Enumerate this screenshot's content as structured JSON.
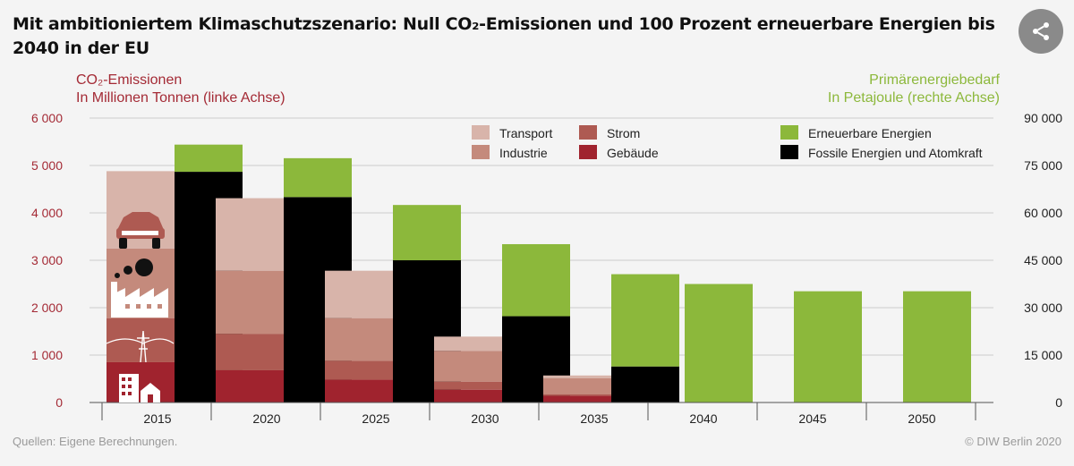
{
  "title": "Mit ambitioniertem Klimaschutzszenario: Null CO₂-Emissionen und 100 Prozent erneuerbare Energien bis 2040 in der EU",
  "share_icon": "share-icon",
  "left_axis_title": "CO₂-Emissionen",
  "left_axis_subtitle": "In Millionen Tonnen (linke Achse)",
  "right_axis_title": "Primärenergiebedarf",
  "right_axis_subtitle": "In Petajoule (rechte Achse)",
  "source": "Quellen: Eigene Berechnungen.",
  "copyright": "© DIW Berlin 2020",
  "colors": {
    "transport": "#d8b4aa",
    "industrie": "#c48a7c",
    "strom": "#ae5a52",
    "gebaeude": "#a0232e",
    "erneuerbar": "#8cb83b",
    "fossil": "#000000",
    "left_axis": "#a42a35",
    "right_axis": "#8cb83b",
    "grid": "#cccccc"
  },
  "chart_data": {
    "type": "bar",
    "categories": [
      "2015",
      "2020",
      "2025",
      "2030",
      "2035",
      "2040",
      "2045",
      "2050"
    ],
    "left_axis": {
      "ylim": [
        0,
        6000
      ],
      "ticks": [
        0,
        1000,
        2000,
        3000,
        4000,
        5000,
        6000
      ],
      "tick_labels": [
        "0",
        "1 000",
        "2 000",
        "3 000",
        "4 000",
        "5 000",
        "6 000"
      ]
    },
    "right_axis": {
      "ylim": [
        0,
        90000
      ],
      "ticks": [
        0,
        15000,
        30000,
        45000,
        60000,
        75000,
        90000
      ],
      "tick_labels": [
        "0",
        "15 000",
        "30 000",
        "45 000",
        "60 000",
        "75 000",
        "90 000"
      ]
    },
    "emissions_series": [
      {
        "name": "Gebäude",
        "color_key": "gebaeude",
        "values": [
          850,
          680,
          480,
          270,
          140,
          0,
          0,
          0
        ]
      },
      {
        "name": "Strom",
        "color_key": "strom",
        "values": [
          930,
          770,
          400,
          170,
          30,
          0,
          0,
          0
        ]
      },
      {
        "name": "Industrie",
        "color_key": "industrie",
        "values": [
          1470,
          1330,
          900,
          650,
          340,
          0,
          0,
          0
        ]
      },
      {
        "name": "Transport",
        "color_key": "transport",
        "values": [
          1630,
          1530,
          1000,
          300,
          60,
          0,
          0,
          0
        ]
      }
    ],
    "energy_series": [
      {
        "name": "Fossile Energien und Atomkraft",
        "color_key": "fossil",
        "values": [
          73000,
          65000,
          45000,
          27300,
          11400,
          0,
          0,
          0
        ]
      },
      {
        "name": "Erneuerbare Energien",
        "color_key": "erneuerbar",
        "values": [
          8600,
          12300,
          17500,
          22800,
          29200,
          37500,
          35200,
          35200
        ]
      }
    ],
    "legend": [
      {
        "label": "Transport",
        "color_key": "transport"
      },
      {
        "label": "Industrie",
        "color_key": "industrie"
      },
      {
        "label": "Strom",
        "color_key": "strom"
      },
      {
        "label": "Gebäude",
        "color_key": "gebaeude"
      },
      {
        "label": "Erneuerbare Energien",
        "color_key": "erneuerbar"
      },
      {
        "label": "Fossile Energien und Atomkraft",
        "color_key": "fossil"
      }
    ],
    "legend_position": "top-right",
    "grid": true
  }
}
